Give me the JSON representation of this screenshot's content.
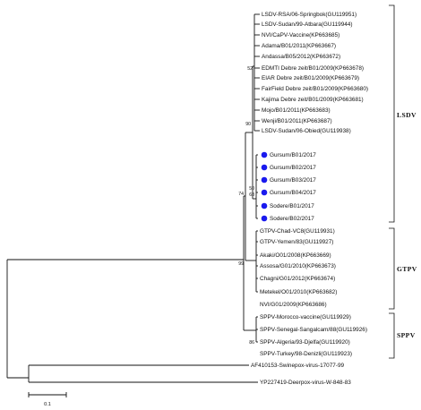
{
  "tree": {
    "clades": {
      "lsdv": {
        "taxa": [
          "LSDV-RSA/06-Springbok(GU119951)",
          "LSDV-Sudan/99-Atbara(GU119944)",
          "NVI/CaPV-Vaccine(KP663685)",
          "Adama/B01/2011(KP663667)",
          "Andassa/B05/2012(KP663672)",
          "EDMTI Debre zeit/B01/2009(KP663678)",
          "EIAR Debre zeit/B01/2009(KP663679)",
          "FairField Debre zeit/B01/2009(KP663680)",
          "Kajima Debre zeit/B01/2009(KP663681)",
          "Mojo/B01/2011(KP663683)",
          "Wenji/B01/2011(KP663687)",
          "LSDV-Sudan/06-Obied(GU119938)",
          "Gursum/B01/2017",
          "Gursum/B02/2017",
          "Gursum/B03/2017",
          "Gursum/B04/2017",
          "Sodere/B01/2017",
          "Sodere/B02/2017"
        ],
        "bootstraps": [
          "52",
          "90",
          "50",
          "68",
          "74"
        ]
      },
      "gtpv": {
        "taxa": [
          "GTPV-Chad-VC8(GU119931)",
          "GTPV-Yemen/83(GU119927)",
          "Akaki/O01/2008(KP663669)",
          "Assosa/G01/2010(KP663673)",
          "Chagni/G01/2012(KP663674)",
          "Metekel/O01/2010(KP663682)",
          "NVI/G01/2009(KP663686)"
        ],
        "bootstraps": [
          "99"
        ]
      },
      "sppv": {
        "taxa": [
          "SPPV-Morocco-vaccine(GU119929)",
          "SPPV-Senegal-Sangalcam/88(GU119926)",
          "SPPV-Algeria/93-Djelfa(GU119920)",
          "SPPV-Turkey/98-Denizli(GU119923)"
        ],
        "bootstraps": [
          "86"
        ]
      },
      "outgroup": {
        "taxa": [
          "AF410153-Swinepox-virus-17077-99",
          "YP227419-Deerpox-virus-W-848-83"
        ]
      }
    },
    "group_labels": {
      "lsdv": "LSDV",
      "gtpv": "GTPV",
      "sppv": "SPPV"
    },
    "highlighted_taxa": [
      "Gursum/B01/2017",
      "Gursum/B02/2017",
      "Gursum/B03/2017",
      "Gursum/B04/2017",
      "Sodere/B01/2017",
      "Sodere/B02/2017"
    ],
    "marker_color": "#1a1aee",
    "scale_bar_label": "0.1"
  }
}
